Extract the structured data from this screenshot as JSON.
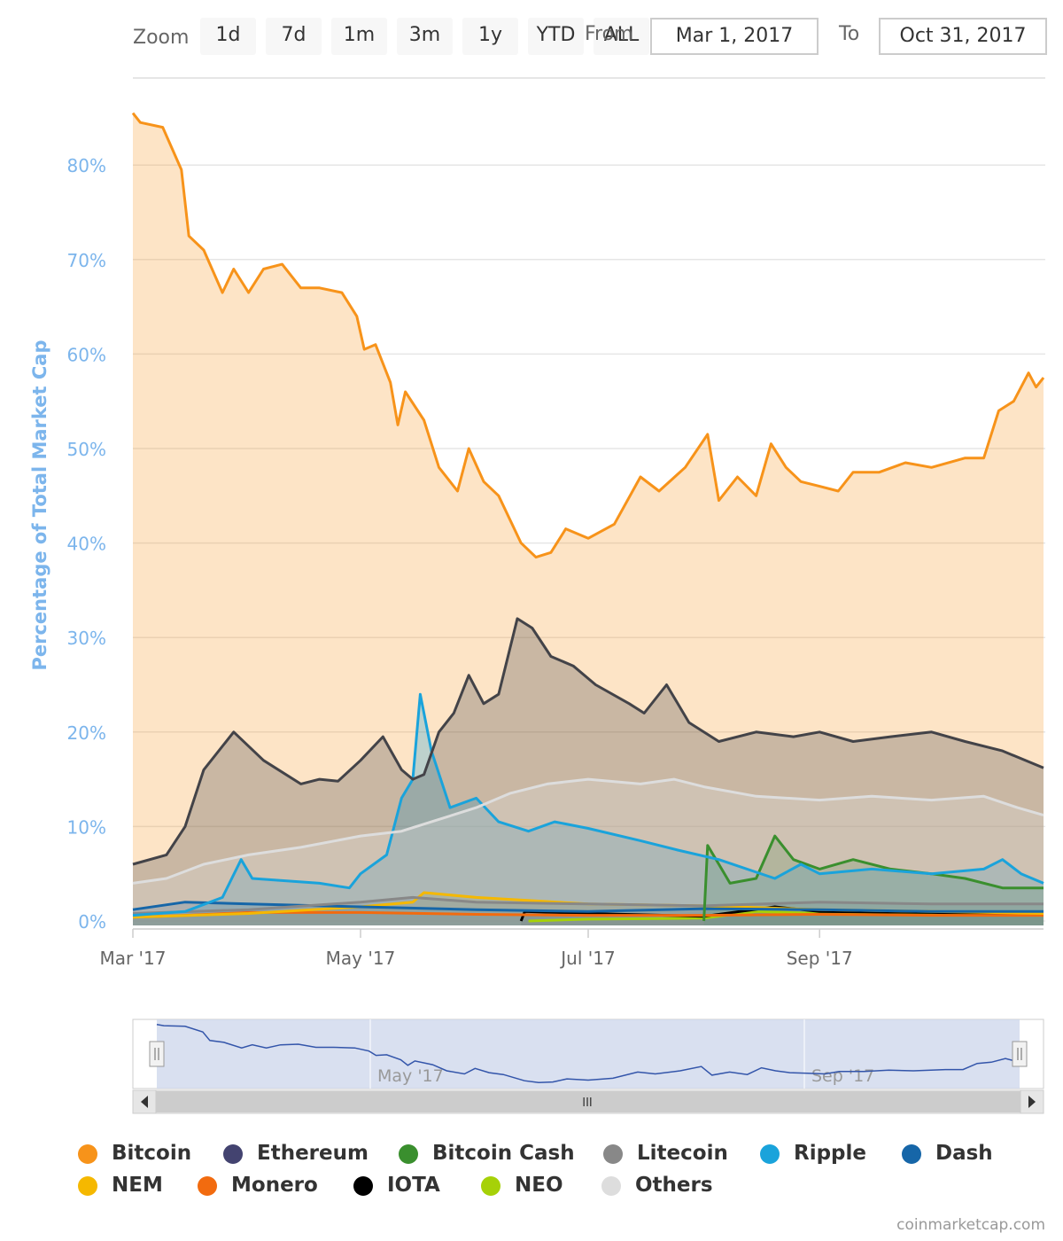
{
  "toolbar": {
    "zoom_label": "Zoom",
    "zoom_buttons": [
      "1d",
      "7d",
      "1m",
      "3m",
      "1y",
      "YTD",
      "ALL"
    ],
    "from_label": "From",
    "from_value": "Mar 1, 2017",
    "to_label": "To",
    "to_value": "Oct 31, 2017"
  },
  "credits": "coinmarketcap.com",
  "navigator": {
    "tick_labels": [
      "May '17",
      "Sep '17"
    ],
    "scroll_grip": "III"
  },
  "chart_data": {
    "type": "area",
    "title": "",
    "ylabel": "Percentage of Total Market Cap",
    "xlabel": "",
    "ylim": [
      0,
      88
    ],
    "xlim": [
      "2017-03-01",
      "2017-10-31"
    ],
    "y_ticks": [
      "0%",
      "10%",
      "20%",
      "30%",
      "40%",
      "50%",
      "60%",
      "70%",
      "80%"
    ],
    "x_ticks": [
      "Mar '17",
      "May '17",
      "Jul '17",
      "Sep '17"
    ],
    "legend_position": "bottom",
    "grid": true,
    "series": [
      {
        "name": "Others",
        "color": "#dddddd",
        "points": [
          [
            "2017-03-01",
            4.0
          ],
          [
            "2017-03-10",
            4.5
          ],
          [
            "2017-03-20",
            6.0
          ],
          [
            "2017-04-01",
            7.0
          ],
          [
            "2017-04-15",
            7.8
          ],
          [
            "2017-05-01",
            9.0
          ],
          [
            "2017-05-12",
            9.5
          ],
          [
            "2017-05-20",
            10.5
          ],
          [
            "2017-06-01",
            12.0
          ],
          [
            "2017-06-10",
            13.5
          ],
          [
            "2017-06-20",
            14.5
          ],
          [
            "2017-07-01",
            15.0
          ],
          [
            "2017-07-15",
            14.5
          ],
          [
            "2017-07-24",
            15.0
          ],
          [
            "2017-08-01",
            14.2
          ],
          [
            "2017-08-15",
            13.2
          ],
          [
            "2017-09-01",
            12.8
          ],
          [
            "2017-09-15",
            13.2
          ],
          [
            "2017-10-01",
            12.8
          ],
          [
            "2017-10-15",
            13.2
          ],
          [
            "2017-10-24",
            12.0
          ],
          [
            "2017-10-31",
            11.2
          ]
        ]
      },
      {
        "name": "Ethereum",
        "color": "#434348",
        "points": [
          [
            "2017-03-01",
            6.0
          ],
          [
            "2017-03-10",
            7.0
          ],
          [
            "2017-03-15",
            10.0
          ],
          [
            "2017-03-20",
            16.0
          ],
          [
            "2017-03-28",
            20.0
          ],
          [
            "2017-04-05",
            17.0
          ],
          [
            "2017-04-15",
            14.5
          ],
          [
            "2017-04-20",
            15.0
          ],
          [
            "2017-04-25",
            14.8
          ],
          [
            "2017-05-01",
            17.0
          ],
          [
            "2017-05-07",
            19.5
          ],
          [
            "2017-05-12",
            16.0
          ],
          [
            "2017-05-15",
            15.0
          ],
          [
            "2017-05-18",
            15.5
          ],
          [
            "2017-05-22",
            20.0
          ],
          [
            "2017-05-26",
            22.0
          ],
          [
            "2017-05-30",
            26.0
          ],
          [
            "2017-06-03",
            23.0
          ],
          [
            "2017-06-07",
            24.0
          ],
          [
            "2017-06-12",
            32.0
          ],
          [
            "2017-06-16",
            31.0
          ],
          [
            "2017-06-21",
            28.0
          ],
          [
            "2017-06-27",
            27.0
          ],
          [
            "2017-07-03",
            25.0
          ],
          [
            "2017-07-12",
            23.0
          ],
          [
            "2017-07-16",
            22.0
          ],
          [
            "2017-07-22",
            25.0
          ],
          [
            "2017-07-28",
            21.0
          ],
          [
            "2017-08-05",
            19.0
          ],
          [
            "2017-08-15",
            20.0
          ],
          [
            "2017-08-25",
            19.5
          ],
          [
            "2017-09-01",
            20.0
          ],
          [
            "2017-09-10",
            19.0
          ],
          [
            "2017-09-20",
            19.5
          ],
          [
            "2017-10-01",
            20.0
          ],
          [
            "2017-10-10",
            19.0
          ],
          [
            "2017-10-20",
            18.0
          ],
          [
            "2017-10-31",
            16.2
          ]
        ]
      },
      {
        "name": "Ripple",
        "color": "#1aa3db",
        "points": [
          [
            "2017-03-01",
            0.6
          ],
          [
            "2017-03-15",
            1.0
          ],
          [
            "2017-03-25",
            2.5
          ],
          [
            "2017-03-30",
            6.5
          ],
          [
            "2017-04-02",
            4.5
          ],
          [
            "2017-04-20",
            4.0
          ],
          [
            "2017-04-28",
            3.5
          ],
          [
            "2017-05-01",
            5.0
          ],
          [
            "2017-05-08",
            7.0
          ],
          [
            "2017-05-12",
            13.0
          ],
          [
            "2017-05-15",
            15.0
          ],
          [
            "2017-05-17",
            24.0
          ],
          [
            "2017-05-20",
            18.0
          ],
          [
            "2017-05-25",
            12.0
          ],
          [
            "2017-06-01",
            13.0
          ],
          [
            "2017-06-07",
            10.5
          ],
          [
            "2017-06-15",
            9.5
          ],
          [
            "2017-06-22",
            10.5
          ],
          [
            "2017-07-01",
            9.8
          ],
          [
            "2017-07-15",
            8.5
          ],
          [
            "2017-07-25",
            7.5
          ],
          [
            "2017-08-05",
            6.5
          ],
          [
            "2017-08-20",
            4.5
          ],
          [
            "2017-08-27",
            6.0
          ],
          [
            "2017-09-01",
            5.0
          ],
          [
            "2017-09-15",
            5.5
          ],
          [
            "2017-10-01",
            5.0
          ],
          [
            "2017-10-15",
            5.5
          ],
          [
            "2017-10-20",
            6.5
          ],
          [
            "2017-10-25",
            5.0
          ],
          [
            "2017-10-31",
            4.0
          ]
        ]
      },
      {
        "name": "Bitcoin Cash",
        "color": "#3a8f2e",
        "points": [
          [
            "2017-08-01",
            0.0
          ],
          [
            "2017-08-02",
            8.0
          ],
          [
            "2017-08-05",
            6.0
          ],
          [
            "2017-08-08",
            4.0
          ],
          [
            "2017-08-15",
            4.5
          ],
          [
            "2017-08-20",
            9.0
          ],
          [
            "2017-08-25",
            6.5
          ],
          [
            "2017-09-01",
            5.5
          ],
          [
            "2017-09-10",
            6.5
          ],
          [
            "2017-09-20",
            5.5
          ],
          [
            "2017-10-01",
            5.0
          ],
          [
            "2017-10-10",
            4.5
          ],
          [
            "2017-10-20",
            3.5
          ],
          [
            "2017-10-31",
            3.5
          ]
        ]
      },
      {
        "name": "Litecoin",
        "color": "#888888",
        "points": [
          [
            "2017-03-01",
            0.8
          ],
          [
            "2017-04-01",
            1.2
          ],
          [
            "2017-05-01",
            2.0
          ],
          [
            "2017-05-15",
            2.5
          ],
          [
            "2017-06-01",
            2.0
          ],
          [
            "2017-07-01",
            1.8
          ],
          [
            "2017-08-01",
            1.6
          ],
          [
            "2017-09-01",
            2.0
          ],
          [
            "2017-10-01",
            1.8
          ],
          [
            "2017-10-31",
            1.8
          ]
        ]
      },
      {
        "name": "Dash",
        "color": "#1666a8",
        "points": [
          [
            "2017-03-01",
            1.2
          ],
          [
            "2017-03-15",
            2.0
          ],
          [
            "2017-04-01",
            1.8
          ],
          [
            "2017-05-01",
            1.5
          ],
          [
            "2017-06-01",
            1.2
          ],
          [
            "2017-07-01",
            1.0
          ],
          [
            "2017-08-01",
            1.3
          ],
          [
            "2017-09-01",
            1.2
          ],
          [
            "2017-10-01",
            1.0
          ],
          [
            "2017-10-31",
            1.0
          ]
        ]
      },
      {
        "name": "NEM",
        "color": "#f5b800",
        "points": [
          [
            "2017-03-01",
            0.4
          ],
          [
            "2017-04-01",
            0.8
          ],
          [
            "2017-05-01",
            1.5
          ],
          [
            "2017-05-15",
            2.0
          ],
          [
            "2017-05-18",
            3.0
          ],
          [
            "2017-06-01",
            2.5
          ],
          [
            "2017-07-01",
            1.8
          ],
          [
            "2017-08-01",
            1.6
          ],
          [
            "2017-09-01",
            1.2
          ],
          [
            "2017-10-01",
            1.0
          ],
          [
            "2017-10-31",
            0.8
          ]
        ]
      },
      {
        "name": "Monero",
        "color": "#f26b0f",
        "points": [
          [
            "2017-03-01",
            0.4
          ],
          [
            "2017-03-15",
            0.6
          ],
          [
            "2017-04-01",
            0.9
          ],
          [
            "2017-05-01",
            0.9
          ],
          [
            "2017-06-01",
            0.7
          ],
          [
            "2017-07-01",
            0.6
          ],
          [
            "2017-08-01",
            0.6
          ],
          [
            "2017-09-01",
            0.7
          ],
          [
            "2017-10-01",
            0.6
          ],
          [
            "2017-10-31",
            0.6
          ]
        ]
      },
      {
        "name": "IOTA",
        "color": "#000000",
        "points": [
          [
            "2017-06-13",
            0.0
          ],
          [
            "2017-06-14",
            1.0
          ],
          [
            "2017-07-01",
            0.8
          ],
          [
            "2017-08-01",
            0.5
          ],
          [
            "2017-08-20",
            1.5
          ],
          [
            "2017-09-01",
            1.0
          ],
          [
            "2017-10-01",
            0.9
          ],
          [
            "2017-10-31",
            0.7
          ]
        ]
      },
      {
        "name": "NEO",
        "color": "#a6d108",
        "points": [
          [
            "2017-06-15",
            0.0
          ],
          [
            "2017-07-01",
            0.2
          ],
          [
            "2017-08-01",
            0.3
          ],
          [
            "2017-08-15",
            1.0
          ],
          [
            "2017-09-01",
            0.8
          ],
          [
            "2017-10-01",
            0.7
          ],
          [
            "2017-10-31",
            0.6
          ]
        ]
      },
      {
        "name": "Bitcoin",
        "color": "#f7931a",
        "points": [
          [
            "2017-03-01",
            85.5
          ],
          [
            "2017-03-03",
            84.5
          ],
          [
            "2017-03-09",
            84.0
          ],
          [
            "2017-03-14",
            79.5
          ],
          [
            "2017-03-16",
            72.5
          ],
          [
            "2017-03-20",
            71.0
          ],
          [
            "2017-03-25",
            66.5
          ],
          [
            "2017-03-28",
            69.0
          ],
          [
            "2017-04-01",
            66.5
          ],
          [
            "2017-04-05",
            69.0
          ],
          [
            "2017-04-10",
            69.5
          ],
          [
            "2017-04-15",
            67.0
          ],
          [
            "2017-04-20",
            67.0
          ],
          [
            "2017-04-26",
            66.5
          ],
          [
            "2017-04-30",
            64.0
          ],
          [
            "2017-05-02",
            60.5
          ],
          [
            "2017-05-05",
            61.0
          ],
          [
            "2017-05-09",
            57.0
          ],
          [
            "2017-05-11",
            52.5
          ],
          [
            "2017-05-13",
            56.0
          ],
          [
            "2017-05-18",
            53.0
          ],
          [
            "2017-05-22",
            48.0
          ],
          [
            "2017-05-27",
            45.5
          ],
          [
            "2017-05-30",
            50.0
          ],
          [
            "2017-06-03",
            46.5
          ],
          [
            "2017-06-07",
            45.0
          ],
          [
            "2017-06-13",
            40.0
          ],
          [
            "2017-06-17",
            38.5
          ],
          [
            "2017-06-21",
            39.0
          ],
          [
            "2017-06-25",
            41.5
          ],
          [
            "2017-07-01",
            40.5
          ],
          [
            "2017-07-08",
            42.0
          ],
          [
            "2017-07-15",
            47.0
          ],
          [
            "2017-07-20",
            45.5
          ],
          [
            "2017-07-27",
            48.0
          ],
          [
            "2017-08-02",
            51.5
          ],
          [
            "2017-08-05",
            44.5
          ],
          [
            "2017-08-10",
            47.0
          ],
          [
            "2017-08-15",
            45.0
          ],
          [
            "2017-08-19",
            50.5
          ],
          [
            "2017-08-23",
            48.0
          ],
          [
            "2017-08-27",
            46.5
          ],
          [
            "2017-09-01",
            46.0
          ],
          [
            "2017-09-06",
            45.5
          ],
          [
            "2017-09-10",
            47.5
          ],
          [
            "2017-09-17",
            47.5
          ],
          [
            "2017-09-24",
            48.5
          ],
          [
            "2017-10-01",
            48.0
          ],
          [
            "2017-10-10",
            49.0
          ],
          [
            "2017-10-15",
            49.0
          ],
          [
            "2017-10-19",
            54.0
          ],
          [
            "2017-10-23",
            55.0
          ],
          [
            "2017-10-27",
            58.0
          ],
          [
            "2017-10-29",
            56.5
          ],
          [
            "2017-10-31",
            57.5
          ]
        ]
      }
    ],
    "legend": [
      "Bitcoin",
      "Ethereum",
      "Bitcoin Cash",
      "Litecoin",
      "Ripple",
      "Dash",
      "NEM",
      "Monero",
      "IOTA",
      "NEO",
      "Others"
    ]
  }
}
